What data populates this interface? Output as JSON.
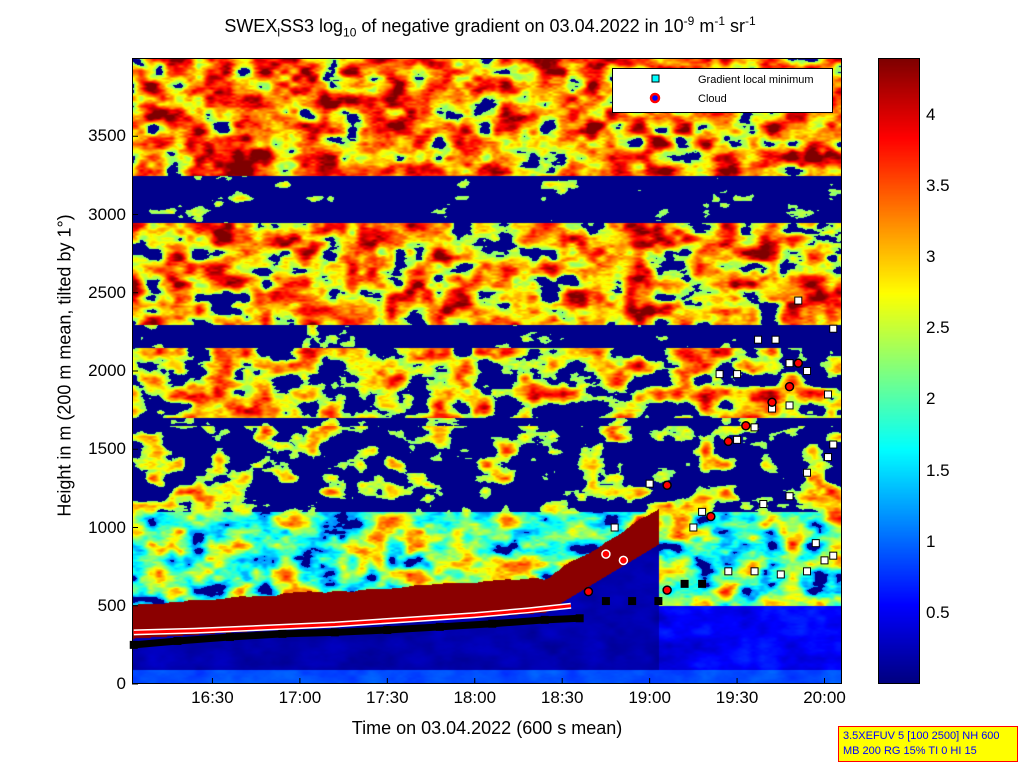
{
  "chart_data": {
    "type": "heatmap",
    "title": {
      "prefix": "SWEX",
      "sub1": "l",
      "mid": "SS3 log",
      "sub2": "10",
      "rest": " of negative gradient on 03.04.2022 in 10",
      "sup1": "-9",
      "unit1": " m",
      "sup2": "-1",
      "unit2": " sr",
      "sup3": "-1"
    },
    "xlabel": "Time on 03.04.2022 (600 s mean)",
    "ylabel": "Height in m (200 m mean, tilted by 1°)",
    "xlim_hours": [
      16.04,
      20.1
    ],
    "ylim": [
      0,
      4000
    ],
    "xticks": [
      {
        "v": 16.5,
        "label": "16:30"
      },
      {
        "v": 17,
        "label": "17:00"
      },
      {
        "v": 17.5,
        "label": "17:30"
      },
      {
        "v": 18,
        "label": "18:00"
      },
      {
        "v": 18.5,
        "label": "18:30"
      },
      {
        "v": 19,
        "label": "19:00"
      },
      {
        "v": 19.5,
        "label": "19:30"
      },
      {
        "v": 20,
        "label": "20:00"
      }
    ],
    "yticks": [
      0,
      500,
      1000,
      1500,
      2000,
      2500,
      3000,
      3500
    ],
    "colorbar": {
      "clim": [
        0,
        4.4
      ],
      "ticks": [
        "0.5",
        "1",
        "1.5",
        "2",
        "2.5",
        "3",
        "3.5",
        "4"
      ],
      "colormap": "jet"
    },
    "legend": {
      "entries": [
        "Gradient local minimum",
        "Cloud"
      ],
      "placement": "top-right"
    },
    "series": [
      {
        "name": "Gradient local minimum",
        "color": "#00ffff",
        "points": [
          [
            16.05,
            250
          ],
          [
            16.3,
            275
          ],
          [
            16.6,
            300
          ],
          [
            16.9,
            320
          ],
          [
            17.2,
            330
          ],
          [
            17.5,
            345
          ],
          [
            17.8,
            365
          ],
          [
            18.1,
            385
          ],
          [
            18.4,
            410
          ],
          [
            18.6,
            420
          ],
          [
            18.75,
            530
          ],
          [
            18.9,
            530
          ],
          [
            19.05,
            530
          ],
          [
            19.2,
            640
          ],
          [
            19.3,
            640
          ],
          [
            19.45,
            720
          ],
          [
            19.6,
            720
          ],
          [
            19.75,
            700
          ],
          [
            19.9,
            720
          ],
          [
            20.0,
            790
          ],
          [
            19.4,
            1980
          ],
          [
            19.5,
            1980
          ],
          [
            19.62,
            2200
          ],
          [
            19.72,
            2200
          ],
          [
            19.8,
            2050
          ],
          [
            19.9,
            2000
          ],
          [
            20.02,
            1850
          ],
          [
            19.5,
            1560
          ],
          [
            19.6,
            1640
          ],
          [
            19.7,
            1760
          ],
          [
            19.8,
            1780
          ],
          [
            19.65,
            1150
          ],
          [
            19.8,
            1200
          ],
          [
            19.9,
            1350
          ],
          [
            20.02,
            1450
          ],
          [
            20.05,
            1530
          ],
          [
            19.25,
            1000
          ],
          [
            19.3,
            1100
          ],
          [
            19.0,
            1280
          ],
          [
            18.8,
            1000
          ],
          [
            19.95,
            900
          ],
          [
            20.05,
            820
          ],
          [
            19.85,
            2450
          ],
          [
            20.05,
            2270
          ]
        ]
      },
      {
        "name": "Cloud",
        "color": "#ff0000",
        "points": [
          [
            16.05,
            330
          ],
          [
            16.4,
            340
          ],
          [
            16.8,
            360
          ],
          [
            17.2,
            380
          ],
          [
            17.6,
            410
          ],
          [
            18.0,
            440
          ],
          [
            18.3,
            470
          ],
          [
            18.55,
            500
          ],
          [
            18.65,
            590
          ],
          [
            18.75,
            830
          ],
          [
            18.85,
            790
          ],
          [
            19.1,
            600
          ],
          [
            19.1,
            1270
          ],
          [
            19.35,
            1070
          ],
          [
            19.45,
            1550
          ],
          [
            19.55,
            1650
          ],
          [
            19.7,
            1800
          ],
          [
            19.8,
            1900
          ],
          [
            19.85,
            2050
          ]
        ]
      }
    ]
  },
  "info_box": {
    "line1": "3.5XEFUV 5 [100 2500] NH 600",
    "line2": "MB 200 RG 15% TI 0 HI 15"
  }
}
